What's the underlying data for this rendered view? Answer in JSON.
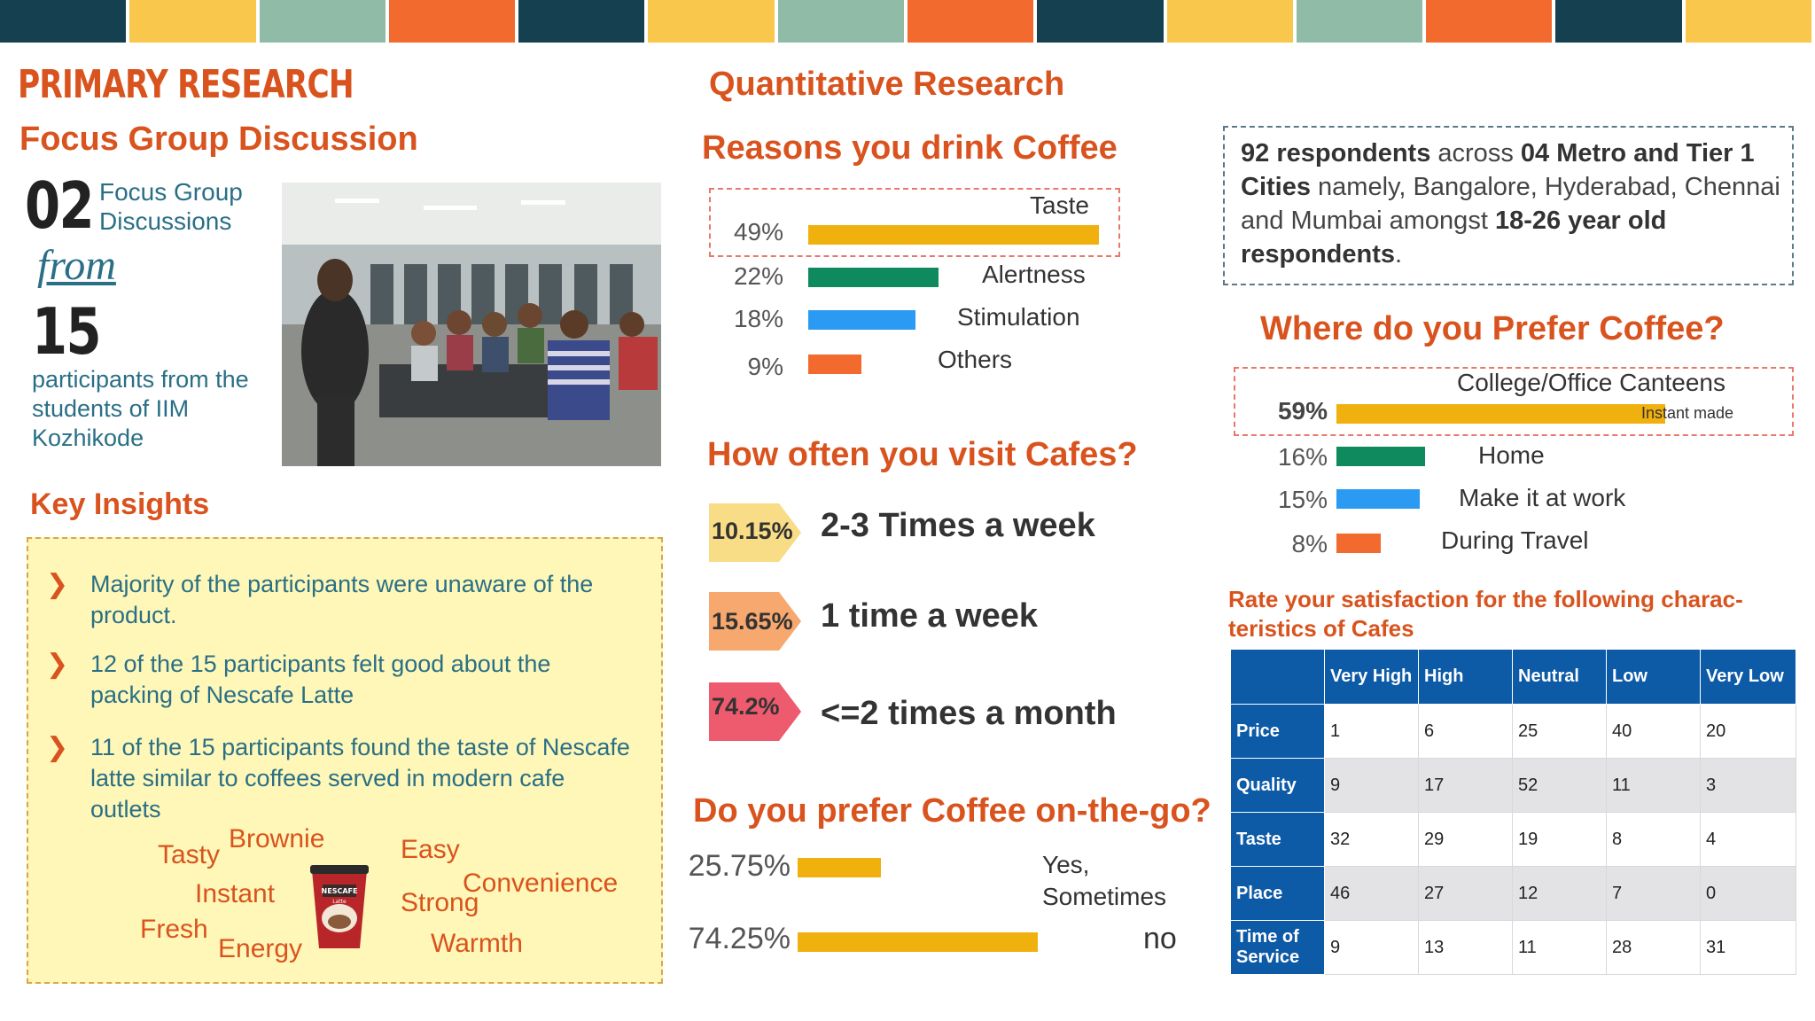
{
  "stripe_colors": [
    "#15404f",
    "#f8c74b",
    "#8fbba7",
    "#f26a2e",
    "#15404f",
    "#f8c74b",
    "#8fbba7",
    "#f26a2e",
    "#15404f",
    "#f8c74b",
    "#8fbba7",
    "#f26a2e",
    "#15404f",
    "#f8c74b"
  ],
  "left": {
    "section_title": "PRIMARY RESEARCH",
    "subtitle": "Focus Group Discussion",
    "fgd_count": "02",
    "fgd_label": "Focus Group Discussions",
    "from_text": "from",
    "participant_count": "15",
    "participants_label": "participants from the students of IIM Kozhikode",
    "key_insights_title": "Key Insights",
    "insights": [
      "Majority of the participants were unaware of the product.",
      "12 of the 15 participants felt good  about the packing of Nescafe Latte",
      "11 of the 15 participants  found the taste of Nescafe latte similar to coffees served in modern cafe outlets"
    ],
    "word_cloud": [
      "Tasty",
      "Brownie",
      "Easy",
      "Instant",
      "Convenience",
      "Strong",
      "Fresh",
      "Energy",
      "Warmth"
    ],
    "cup_brand": "NESCAFE",
    "cup_sub": "Latte"
  },
  "middle": {
    "title": "Quantitative Research",
    "reasons": {
      "title": "Reasons you drink Coffee",
      "items": [
        {
          "pct": "49%",
          "label": "Taste",
          "value": 49,
          "color": "#f0b10f"
        },
        {
          "pct": "22%",
          "label": "Alertness",
          "value": 22,
          "color": "#0f8a5f"
        },
        {
          "pct": "18%",
          "label": "Stimulation",
          "value": 18,
          "color": "#2b9af3"
        },
        {
          "pct": "9%",
          "label": "Others",
          "value": 9,
          "color": "#f26a2e"
        }
      ]
    },
    "visits": {
      "title": "How often you visit Cafes?",
      "items": [
        {
          "pct": "10.15%",
          "label": "2-3 Times a week",
          "color": "#f8dc86"
        },
        {
          "pct": "15.65%",
          "label": "1 time a week",
          "color": "#f6a86e"
        },
        {
          "pct": "74.2%",
          "label": "<=2 times a month",
          "color": "#ee5a6e"
        }
      ]
    },
    "onthego": {
      "title": "Do you prefer Coffee on-the-go?",
      "items": [
        {
          "pct": "25.75%",
          "label": "Yes,",
          "label2": "Sometimes",
          "value": 25.75,
          "color": "#f0b10f"
        },
        {
          "pct": "74.25%",
          "label": "no",
          "label2": "",
          "value": 74.25,
          "color": "#f0b10f"
        }
      ]
    }
  },
  "right": {
    "respondents": {
      "b1": "92 respondents",
      "t1": " across ",
      "b2": "04 Metro and Tier 1 Cities",
      "t2": " namely, Bangalore, Hyderabad, Chennai and Mumbai amongst ",
      "b3": "18-26 year old respondents",
      "t3": "."
    },
    "prefer": {
      "title": "Where do you Prefer Coffee?",
      "items": [
        {
          "pct": "59%",
          "label": "College/Office Canteens",
          "note": "Instant made",
          "value": 59,
          "color": "#f0b10f"
        },
        {
          "pct": "16%",
          "label": "Home",
          "note": "",
          "value": 16,
          "color": "#0f8a5f"
        },
        {
          "pct": "15%",
          "label": "Make it at work",
          "note": "",
          "value": 15,
          "color": "#2b9af3"
        },
        {
          "pct": "8%",
          "label": "During Travel",
          "note": "",
          "value": 8,
          "color": "#f26a2e"
        }
      ]
    },
    "satisfaction": {
      "title": "Rate your satisfaction for the following charac-teristics of Cafes",
      "columns": [
        "",
        "Very High",
        "High",
        "Neutral",
        "Low",
        "Very Low"
      ],
      "rows": [
        {
          "name": "Price",
          "values": [
            "1",
            "6",
            "25",
            "40",
            "20"
          ]
        },
        {
          "name": "Quality",
          "values": [
            "9",
            "17",
            "52",
            "11",
            "3"
          ]
        },
        {
          "name": "Taste",
          "values": [
            "32",
            "29",
            "19",
            "8",
            "4"
          ]
        },
        {
          "name": "Place",
          "values": [
            "46",
            "27",
            "12",
            "7",
            "0"
          ]
        },
        {
          "name": "Time of Service",
          "values": [
            "9",
            "13",
            "11",
            "28",
            "31"
          ]
        }
      ]
    }
  }
}
